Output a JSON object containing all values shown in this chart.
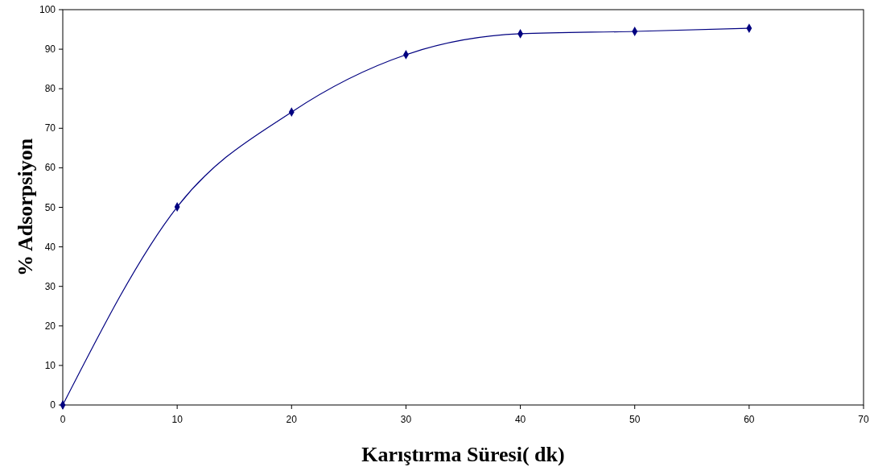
{
  "chart_data": {
    "type": "line",
    "xlabel": "Karıştırma Süresi( dk)",
    "ylabel": "% Adsorpsiyon",
    "x": [
      0,
      10,
      20,
      30,
      40,
      50,
      60
    ],
    "series": [
      {
        "color": "#000080",
        "values": [
          0,
          50.1,
          74.1,
          88.6,
          93.9,
          94.5,
          95.3
        ]
      }
    ],
    "xlim": [
      0,
      70
    ],
    "xticks": [
      0,
      10,
      20,
      30,
      40,
      50,
      60,
      70
    ],
    "ylim": [
      0,
      100
    ],
    "yticks": [
      0,
      10,
      20,
      30,
      40,
      50,
      60,
      70,
      80,
      90,
      100
    ],
    "grid": false,
    "marker": "diamond",
    "line_style": "solid"
  }
}
